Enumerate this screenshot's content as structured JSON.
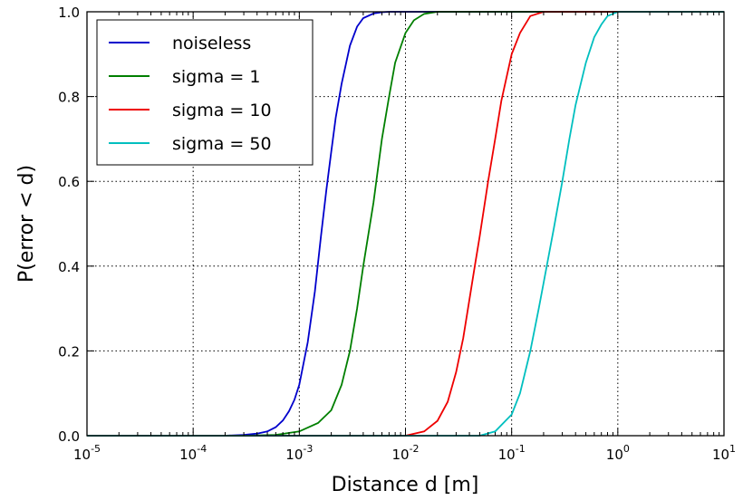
{
  "chart_data": {
    "type": "line",
    "xscale": "log",
    "xlim": [
      1e-05,
      10
    ],
    "ylim": [
      0.0,
      1.0
    ],
    "grid": true,
    "legend_position": "top-left",
    "xlabel": "Distance d [m]",
    "ylabel": "P(error < d)",
    "x_ticks": [
      {
        "base": "10",
        "exp": "-5"
      },
      {
        "base": "10",
        "exp": "-4"
      },
      {
        "base": "10",
        "exp": "-3"
      },
      {
        "base": "10",
        "exp": "-2"
      },
      {
        "base": "10",
        "exp": "-1"
      },
      {
        "base": "10",
        "exp": "0"
      },
      {
        "base": "10",
        "exp": "1"
      }
    ],
    "y_ticks": [
      "0.0",
      "0.2",
      "0.4",
      "0.6",
      "0.8",
      "1.0"
    ],
    "series": [
      {
        "name": "noiseless",
        "color": "#0000cc",
        "x": [
          0.0001,
          0.0002,
          0.0003,
          0.0004,
          0.0005,
          0.0006,
          0.0007,
          0.0008,
          0.0009,
          0.001,
          0.0012,
          0.0014,
          0.0016,
          0.0018,
          0.002,
          0.0022,
          0.0025,
          0.003,
          0.0035,
          0.004,
          0.005,
          0.006,
          0.007,
          0.008
        ],
        "y": [
          0.0,
          0.0,
          0.002,
          0.005,
          0.01,
          0.02,
          0.036,
          0.058,
          0.085,
          0.12,
          0.22,
          0.34,
          0.47,
          0.58,
          0.67,
          0.75,
          0.83,
          0.92,
          0.965,
          0.985,
          0.996,
          0.999,
          1.0,
          1.0
        ]
      },
      {
        "name": "sigma = 1",
        "color": "#007f00",
        "x": [
          0.0003,
          0.0006,
          0.001,
          0.0015,
          0.002,
          0.0025,
          0.003,
          0.0035,
          0.004,
          0.005,
          0.006,
          0.007,
          0.008,
          0.01,
          0.012,
          0.015,
          0.02
        ],
        "y": [
          0.0,
          0.002,
          0.01,
          0.03,
          0.06,
          0.12,
          0.2,
          0.3,
          0.4,
          0.55,
          0.7,
          0.8,
          0.88,
          0.95,
          0.98,
          0.995,
          1.0
        ]
      },
      {
        "name": "sigma = 10",
        "color": "#ee0000",
        "x": [
          0.01,
          0.015,
          0.02,
          0.025,
          0.03,
          0.035,
          0.04,
          0.045,
          0.05,
          0.06,
          0.07,
          0.08,
          0.1,
          0.12,
          0.15,
          0.2
        ],
        "y": [
          0.0,
          0.01,
          0.035,
          0.08,
          0.15,
          0.23,
          0.32,
          0.4,
          0.47,
          0.6,
          0.7,
          0.79,
          0.9,
          0.95,
          0.99,
          1.0
        ]
      },
      {
        "name": "sigma = 50",
        "color": "#00bfbf",
        "x": [
          0.05,
          0.07,
          0.1,
          0.12,
          0.15,
          0.18,
          0.2,
          0.25,
          0.3,
          0.35,
          0.4,
          0.5,
          0.6,
          0.7,
          0.8,
          1.0
        ],
        "y": [
          0.0,
          0.01,
          0.05,
          0.1,
          0.2,
          0.3,
          0.36,
          0.49,
          0.6,
          0.7,
          0.78,
          0.88,
          0.94,
          0.97,
          0.99,
          1.0
        ]
      }
    ]
  }
}
